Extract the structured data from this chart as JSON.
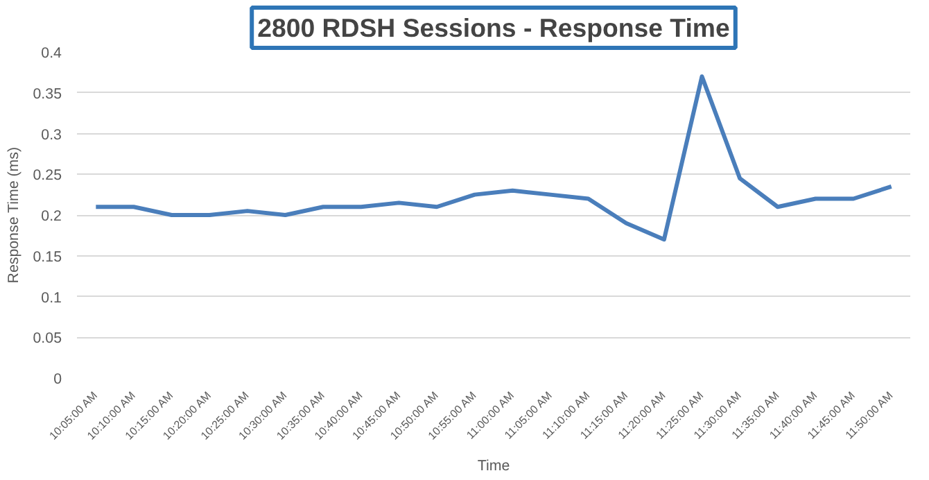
{
  "chart_data": {
    "type": "line",
    "title": "2800 RDSH Sessions - Response Time",
    "xlabel": "Time",
    "ylabel": "Response Time (ms)",
    "categories": [
      "10:05:00 AM",
      "10:10:00 AM",
      "10:15:00 AM",
      "10:20:00 AM",
      "10:25:00 AM",
      "10:30:00 AM",
      "10:35:00 AM",
      "10:40:00 AM",
      "10:45:00 AM",
      "10:50:00 AM",
      "10:55:00 AM",
      "11:00:00 AM",
      "11:05:00 AM",
      "11:10:00 AM",
      "11:15:00 AM",
      "11:20:00 AM",
      "11:25:00 AM",
      "11:30:00 AM",
      "11:35:00 AM",
      "11:40:00 AM",
      "11:45:00 AM",
      "11:50:00 AM"
    ],
    "series": [
      {
        "color": "#4a7ebb",
        "values": [
          0.21,
          0.21,
          0.2,
          0.2,
          0.205,
          0.2,
          0.21,
          0.21,
          0.215,
          0.21,
          0.225,
          0.23,
          0.225,
          0.22,
          0.19,
          0.17,
          0.37,
          0.245,
          0.21,
          0.22,
          0.22,
          0.235
        ]
      }
    ],
    "ylim": [
      0,
      0.4
    ],
    "yticks": [
      {
        "value": 0,
        "label": "0"
      },
      0.05,
      0.1,
      0.15,
      0.2,
      0.25,
      0.3,
      0.35,
      0.4
    ],
    "grid": "y",
    "marker": "none",
    "line_style": "solid"
  }
}
